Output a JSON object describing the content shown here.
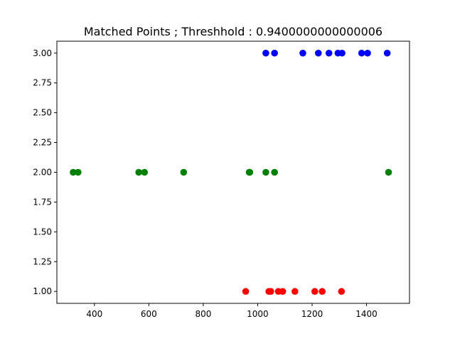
{
  "chart_data": {
    "type": "scatter",
    "title": "Matched Points ; Threshhold : 0.9400000000000006",
    "xlabel": "",
    "ylabel": "",
    "xlim": [
      262,
      1558
    ],
    "ylim": [
      0.9,
      3.1
    ],
    "xticks": [
      400,
      600,
      800,
      1000,
      1200,
      1400
    ],
    "yticks": [
      1.0,
      1.25,
      1.5,
      1.75,
      2.0,
      2.25,
      2.5,
      2.75,
      3.0
    ],
    "xtick_labels": [
      "400",
      "600",
      "800",
      "1000",
      "1200",
      "1400"
    ],
    "ytick_labels": [
      "1.00",
      "1.25",
      "1.50",
      "1.75",
      "2.00",
      "2.25",
      "2.50",
      "2.75",
      "3.00"
    ],
    "grid": false,
    "series": [
      {
        "color": "#ff0000",
        "x": [
          956,
          1041,
          1048,
          1076,
          1092,
          1137,
          1210,
          1237,
          1308
        ],
        "y": [
          1,
          1,
          1,
          1,
          1,
          1,
          1,
          1,
          1
        ]
      },
      {
        "color": "#008000",
        "x": [
          322,
          340,
          563,
          584,
          728,
          969,
          971,
          1030,
          1062,
          1481
        ],
        "y": [
          2,
          2,
          2,
          2,
          2,
          2,
          2,
          2,
          2,
          2
        ]
      },
      {
        "color": "#0000ff",
        "x": [
          1030,
          1062,
          1166,
          1223,
          1262,
          1295,
          1310,
          1382,
          1404,
          1476
        ],
        "y": [
          3,
          3,
          3,
          3,
          3,
          3,
          3,
          3,
          3,
          3
        ]
      }
    ]
  }
}
